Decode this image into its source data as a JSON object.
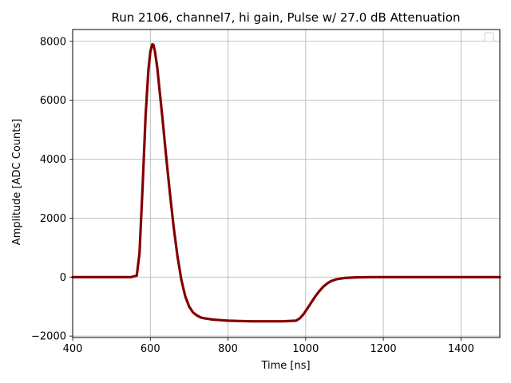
{
  "chart_data": {
    "type": "line",
    "title": "Run 2106, channel7, hi gain, Pulse w/ 27.0 dB Attenuation",
    "xlabel": "Time [ns]",
    "ylabel": "Amplitude [ADC Counts]",
    "xlim": [
      400,
      1500
    ],
    "ylim": [
      -2050,
      8400
    ],
    "xticks": [
      400,
      600,
      800,
      1000,
      1200,
      1400
    ],
    "yticks": [
      -2000,
      0,
      2000,
      4000,
      6000,
      8000
    ],
    "grid": true,
    "legend": "top-right, empty",
    "color": "#8b0000",
    "series": [
      {
        "x": [
          400,
          450,
          500,
          550,
          565,
          572,
          580,
          588,
          595,
          600,
          605,
          608,
          612,
          618,
          625,
          632,
          640,
          650,
          660,
          670,
          680,
          690,
          700,
          710,
          720,
          730,
          740,
          750,
          760,
          780,
          800,
          830,
          860,
          900,
          940,
          975,
          985,
          995,
          1005,
          1015,
          1025,
          1035,
          1045,
          1055,
          1065,
          1080,
          1100,
          1130,
          1170,
          1250,
          1350,
          1450,
          1500
        ],
        "y": [
          0,
          0,
          0,
          0,
          50,
          800,
          3000,
          5500,
          7000,
          7650,
          7900,
          7880,
          7650,
          7100,
          6200,
          5300,
          4200,
          2900,
          1700,
          700,
          -100,
          -650,
          -1000,
          -1200,
          -1300,
          -1370,
          -1400,
          -1420,
          -1440,
          -1460,
          -1480,
          -1490,
          -1500,
          -1500,
          -1500,
          -1480,
          -1400,
          -1250,
          -1050,
          -850,
          -650,
          -480,
          -330,
          -220,
          -140,
          -70,
          -30,
          -10,
          0,
          0,
          0,
          0,
          0
        ]
      }
    ]
  }
}
